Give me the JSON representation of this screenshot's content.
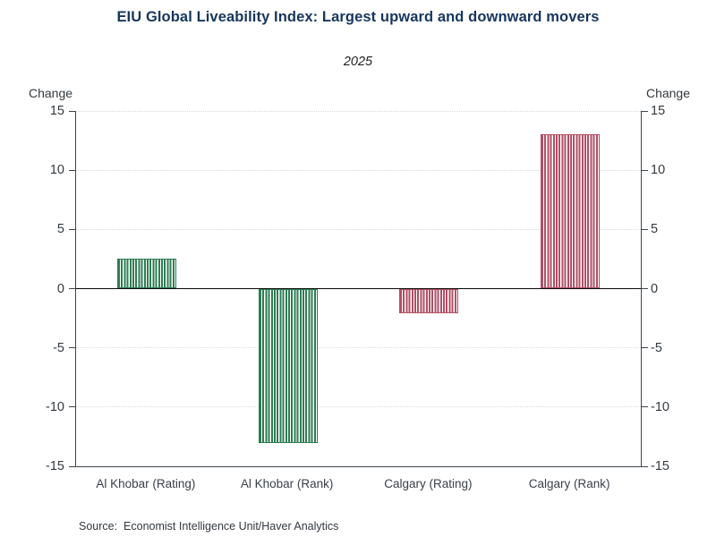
{
  "header": {
    "title": "EIU Global Liveability Index: Largest upward and downward movers",
    "subtitle": "2025"
  },
  "axes": {
    "left_unit_label": "Change",
    "right_unit_label": "Change"
  },
  "footer": {
    "source": "Source:  Economist Intelligence Unit/Haver Analytics"
  },
  "colors": {
    "title_navy": "#17365d",
    "positive_mover_green": "#2e7d53",
    "negative_mover_red": "#b04f66",
    "axis_spine": "#3c4650",
    "gridline": "#d9d9d9",
    "zero_line": "#0a0a0a"
  },
  "chart_data": {
    "type": "bar",
    "title": "EIU Global Liveability Index: Largest upward and downward movers",
    "subtitle": "2025",
    "categories": [
      "Al Khobar (Rating)",
      "Al Khobar (Rank)",
      "Calgary (Rating)",
      "Calgary (Rank)"
    ],
    "values": [
      2.5,
      -13,
      -2.1,
      13
    ],
    "bar_colors": [
      "#2e7d53",
      "#2e7d53",
      "#b04f66",
      "#b04f66"
    ],
    "bar_fill_pattern": "vertical-stripes",
    "ylabel": "Change",
    "ylim": [
      -15,
      15
    ],
    "yticks": [
      15,
      10,
      5,
      0,
      -5,
      -10,
      -15
    ],
    "grid": "horizontal-dotted",
    "zero_baseline": true,
    "legend": "none"
  }
}
